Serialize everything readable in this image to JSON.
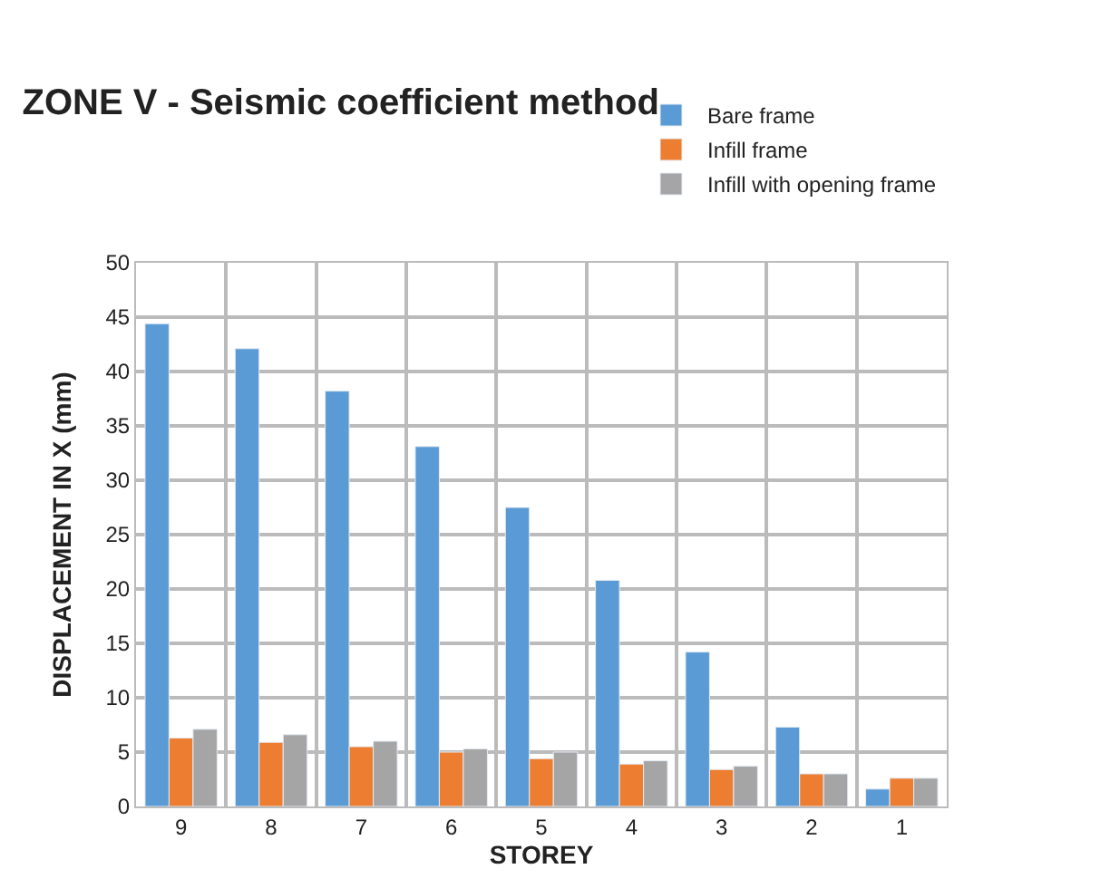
{
  "chart_data": {
    "type": "bar",
    "title": "ZONE V - Seismic coefficient method",
    "xlabel": "STOREY",
    "ylabel": "DISPLACEMENT IN X (mm)",
    "categories": [
      "9",
      "8",
      "7",
      "6",
      "5",
      "4",
      "3",
      "2",
      "1"
    ],
    "series": [
      {
        "name": "Bare frame",
        "color": "#5b9bd5",
        "values": [
          44.4,
          42.1,
          38.2,
          33.1,
          27.5,
          20.8,
          14.2,
          7.3,
          1.6
        ]
      },
      {
        "name": "Infill frame",
        "color": "#ed7d31",
        "values": [
          6.3,
          5.9,
          5.5,
          5.0,
          4.4,
          3.9,
          3.4,
          3.0,
          2.6
        ]
      },
      {
        "name": "Infill with opening frame",
        "color": "#a5a5a5",
        "values": [
          7.1,
          6.6,
          6.0,
          5.3,
          5.0,
          4.2,
          3.7,
          3.0,
          2.6
        ]
      }
    ],
    "ylim": [
      0,
      50
    ],
    "yticks": [
      0,
      5,
      10,
      15,
      20,
      25,
      30,
      35,
      40,
      45,
      50
    ],
    "grid": true,
    "legend": "top right"
  }
}
